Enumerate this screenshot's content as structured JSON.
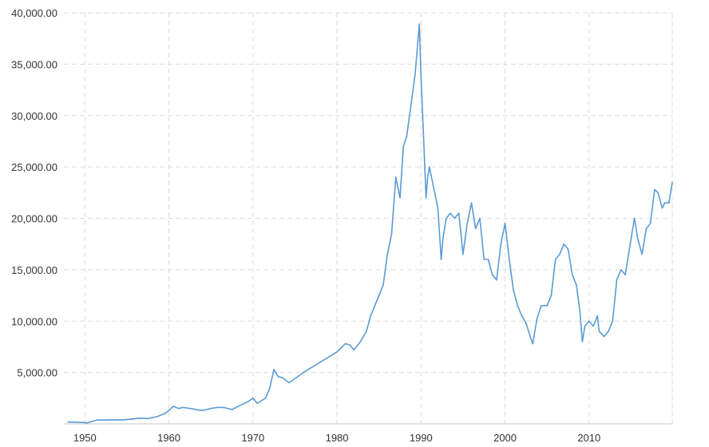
{
  "chart_data": {
    "type": "line",
    "title": "",
    "xlabel": "",
    "ylabel": "",
    "grid": true,
    "legend": "none",
    "xlim": [
      1947.5,
      2019.9
    ],
    "ylim": [
      0,
      40000
    ],
    "y_ticks": [
      5000,
      10000,
      15000,
      20000,
      25000,
      30000,
      35000,
      40000
    ],
    "y_tick_labels": [
      "5,000.00",
      "10,000.00",
      "15,000.00",
      "20,000.00",
      "25,000.00",
      "30,000.00",
      "35,000.00",
      "40,000.00"
    ],
    "x_ticks": [
      1950,
      1960,
      1970,
      1980,
      1990,
      2000,
      2010
    ],
    "x_tick_labels": [
      "1950",
      "1960",
      "1970",
      "1980",
      "1990",
      "2000",
      "2010"
    ],
    "colors": {
      "series": "#5b9bd5",
      "axis": "#333333",
      "grid": "#dcdcdc"
    },
    "series": [
      {
        "x": [
          1948.0,
          1949.4,
          1950.3,
          1951.5,
          1952.5,
          1953.2,
          1954.5,
          1955.5,
          1956.5,
          1957.5,
          1958.5,
          1959.5,
          1960.0,
          1960.5,
          1961.2,
          1961.7,
          1962.5,
          1963.5,
          1964.0,
          1965.0,
          1965.8,
          1966.5,
          1967.5,
          1968.5,
          1969.5,
          1970.0,
          1970.5,
          1971.5,
          1972.0,
          1972.5,
          1973.0,
          1973.5,
          1974.3,
          1975.0,
          1976.0,
          1977.0,
          1978.0,
          1979.0,
          1980.0,
          1981.0,
          1981.5,
          1982.0,
          1982.8,
          1983.5,
          1984.0,
          1985.0,
          1985.5,
          1986.0,
          1986.5,
          1987.0,
          1987.5,
          1987.9,
          1988.3,
          1988.8,
          1989.3,
          1989.8,
          1989.99,
          1990.2,
          1990.6,
          1990.8,
          1991.0,
          1991.5,
          1992.0,
          1992.4,
          1992.6,
          1993.0,
          1993.5,
          1994.0,
          1994.5,
          1995.0,
          1995.5,
          1996.0,
          1996.5,
          1997.0,
          1997.5,
          1998.0,
          1998.5,
          1999.0,
          1999.5,
          2000.0,
          2000.5,
          2001.0,
          2001.5,
          2002.0,
          2002.5,
          2003.0,
          2003.3,
          2003.8,
          2004.3,
          2005.0,
          2005.5,
          2006.0,
          2006.5,
          2007.0,
          2007.5,
          2008.0,
          2008.5,
          2008.9,
          2009.2,
          2009.5,
          2010.0,
          2010.5,
          2011.0,
          2011.2,
          2011.8,
          2012.3,
          2012.8,
          2013.3,
          2013.8,
          2014.3,
          2014.8,
          2015.4,
          2015.8,
          2016.3,
          2016.8,
          2017.3,
          2017.8,
          2018.2,
          2018.7,
          2019.0,
          2019.5,
          2019.9
        ],
        "y": [
          180,
          150,
          110,
          380,
          370,
          400,
          380,
          460,
          550,
          520,
          680,
          1000,
          1300,
          1700,
          1500,
          1600,
          1500,
          1350,
          1300,
          1500,
          1600,
          1600,
          1400,
          1800,
          2200,
          2500,
          2000,
          2500,
          3500,
          5300,
          4600,
          4500,
          4000,
          4400,
          5000,
          5500,
          6000,
          6500,
          7000,
          7800,
          7700,
          7200,
          8000,
          9000,
          10500,
          12500,
          13500,
          16500,
          18500,
          24000,
          22000,
          27000,
          28000,
          31000,
          34000,
          38900,
          34000,
          30000,
          22000,
          24000,
          25000,
          23000,
          21000,
          16000,
          18000,
          20000,
          20500,
          20000,
          20500,
          16500,
          19500,
          21500,
          19000,
          20000,
          16000,
          16000,
          14500,
          14000,
          17500,
          19500,
          16000,
          13000,
          11500,
          10500,
          9800,
          8500,
          7800,
          10200,
          11500,
          11500,
          12500,
          16000,
          16500,
          17500,
          17000,
          14500,
          13500,
          11000,
          8000,
          9500,
          10000,
          9500,
          10500,
          9000,
          8500,
          9000,
          10000,
          14000,
          15000,
          14500,
          17000,
          20000,
          18000,
          16500,
          19000,
          19500,
          22800,
          22500,
          21000,
          21500,
          21500,
          23500
        ]
      }
    ]
  }
}
